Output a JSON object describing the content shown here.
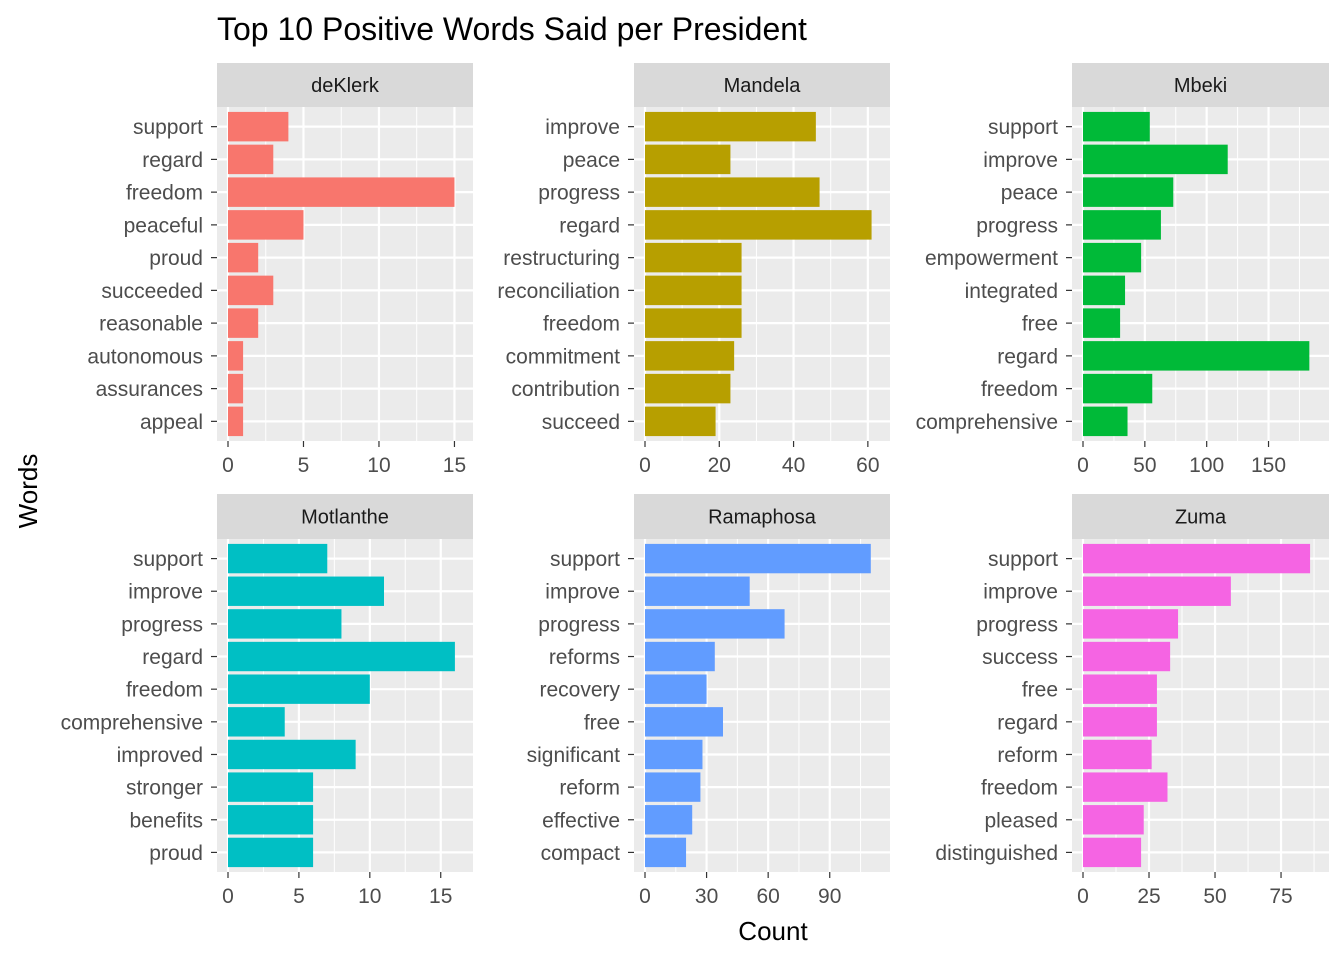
{
  "chart_data": {
    "type": "bar",
    "orientation": "horizontal",
    "title": "Top 10 Positive Words Said per President",
    "xlabel": "Count",
    "ylabel": "Words",
    "grid": true,
    "legend": "none",
    "facets": [
      {
        "name": "deKlerk",
        "color": "#F8766D",
        "xlim": [
          0,
          15.5
        ],
        "xticks": [
          0,
          5,
          10,
          15
        ],
        "categories": [
          "support",
          "regard",
          "freedom",
          "peaceful",
          "proud",
          "succeeded",
          "reasonable",
          "autonomous",
          "assurances",
          "appeal"
        ],
        "values": [
          4,
          3,
          15,
          5,
          2,
          3,
          2,
          1,
          1,
          1
        ]
      },
      {
        "name": "Mandela",
        "color": "#B79F00",
        "xlim": [
          0,
          63
        ],
        "xticks": [
          0,
          20,
          40,
          60
        ],
        "categories": [
          "improve",
          "peace",
          "progress",
          "regard",
          "restructuring",
          "reconciliation",
          "freedom",
          "commitment",
          "contribution",
          "succeed"
        ],
        "values": [
          46,
          23,
          47,
          61,
          26,
          26,
          26,
          24,
          23,
          19
        ]
      },
      {
        "name": "Mbeki",
        "color": "#00BA38",
        "xlim": [
          0,
          190
        ],
        "xticks": [
          0,
          50,
          100,
          150
        ],
        "categories": [
          "support",
          "improve",
          "peace",
          "progress",
          "empowerment",
          "integrated",
          "free",
          "regard",
          "freedom",
          "comprehensive"
        ],
        "values": [
          54,
          117,
          73,
          63,
          47,
          34,
          30,
          183,
          56,
          36
        ]
      },
      {
        "name": "Motlanthe",
        "color": "#00BFC4",
        "xlim": [
          0,
          16.5
        ],
        "xticks": [
          0,
          5,
          10,
          15
        ],
        "categories": [
          "support",
          "improve",
          "progress",
          "regard",
          "freedom",
          "comprehensive",
          "improved",
          "stronger",
          "benefits",
          "proud"
        ],
        "values": [
          7,
          11,
          8,
          16,
          10,
          4,
          9,
          6,
          6,
          6
        ]
      },
      {
        "name": "Ramaphosa",
        "color": "#619CFF",
        "xlim": [
          0,
          114
        ],
        "xticks": [
          0,
          30,
          60,
          90
        ],
        "categories": [
          "support",
          "improve",
          "progress",
          "reforms",
          "recovery",
          "free",
          "significant",
          "reform",
          "effective",
          "compact"
        ],
        "values": [
          110,
          51,
          68,
          34,
          30,
          38,
          28,
          27,
          23,
          20
        ]
      },
      {
        "name": "Zuma",
        "color": "#F564E3",
        "xlim": [
          0,
          89
        ],
        "xticks": [
          0,
          25,
          50,
          75
        ],
        "categories": [
          "support",
          "improve",
          "progress",
          "success",
          "free",
          "regard",
          "reform",
          "freedom",
          "pleased",
          "distinguished"
        ],
        "values": [
          86,
          56,
          36,
          33,
          28,
          28,
          26,
          32,
          23,
          22
        ]
      }
    ]
  }
}
